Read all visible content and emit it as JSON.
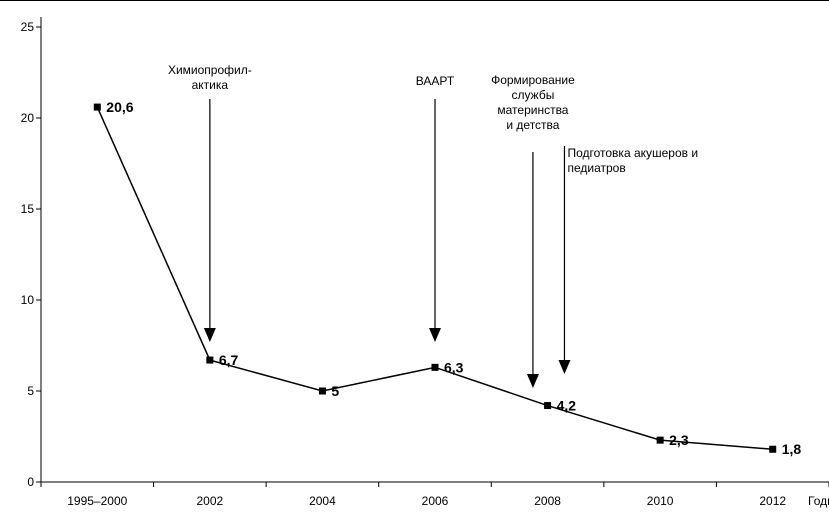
{
  "chart_data": {
    "type": "line",
    "title": "",
    "xlabel": "Годы",
    "ylabel": "",
    "categories": [
      "1995–2000",
      "2002",
      "2004",
      "2006",
      "2008",
      "2010",
      "2012"
    ],
    "values": [
      20.6,
      6.7,
      5,
      6.3,
      4.2,
      2.3,
      1.8
    ],
    "data_labels": [
      "20,6",
      "6,7",
      "5",
      "6,3",
      "4,2",
      "2,3",
      "1,8"
    ],
    "ylim": [
      0,
      25
    ],
    "yticks": [
      "0",
      "5",
      "10",
      "15",
      "20",
      "25"
    ],
    "grid": false,
    "legend": "none",
    "line_color": "#000000",
    "marker": "square",
    "annotations": [
      {
        "lines": [
          "Химиопрофил-",
          "актика"
        ],
        "x_position": 1
      },
      {
        "lines": [
          "ВААРТ"
        ],
        "x_position": 3
      },
      {
        "lines": [
          "Формирование",
          "службы",
          "материнства",
          "и детства"
        ],
        "x_position": 4
      },
      {
        "lines": [
          "Подготовка акушеров и",
          "педиатров"
        ],
        "x_position": 4
      }
    ]
  }
}
